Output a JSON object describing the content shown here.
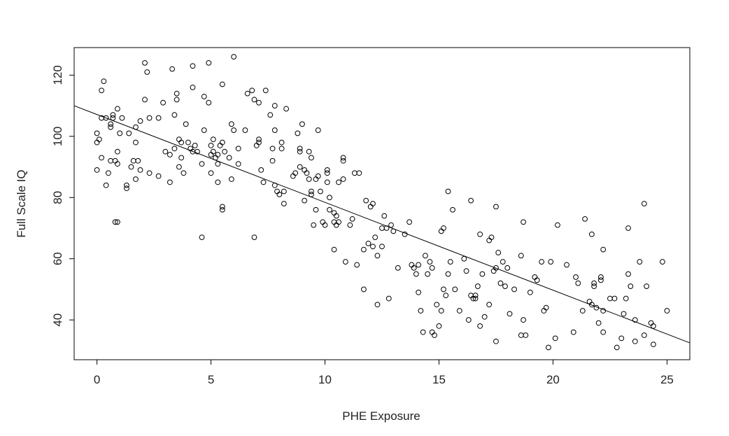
{
  "chart_data": {
    "type": "scatter",
    "title": "",
    "xlabel": "PHE Exposure",
    "ylabel": "Full Scale IQ",
    "xlim": [
      -1,
      26
    ],
    "ylim": [
      27,
      129
    ],
    "xticks": [
      0,
      5,
      10,
      15,
      20,
      25
    ],
    "yticks": [
      40,
      60,
      80,
      100,
      120
    ],
    "grid": false,
    "regression_line": {
      "x": [
        -1,
        26
      ],
      "y": [
        110,
        32.5
      ]
    },
    "points": [
      [
        0,
        101
      ],
      [
        0,
        98
      ],
      [
        0.1,
        99
      ],
      [
        0,
        89
      ],
      [
        0.2,
        93
      ],
      [
        0.2,
        106
      ],
      [
        0.2,
        115
      ],
      [
        0.3,
        118
      ],
      [
        0.4,
        84
      ],
      [
        0.4,
        106
      ],
      [
        0.5,
        88
      ],
      [
        0.6,
        92
      ],
      [
        0.6,
        104
      ],
      [
        0.6,
        103
      ],
      [
        0.7,
        106
      ],
      [
        0.7,
        107
      ],
      [
        0.8,
        72
      ],
      [
        0.8,
        92
      ],
      [
        0.9,
        72
      ],
      [
        0.9,
        91
      ],
      [
        0.9,
        95
      ],
      [
        0.9,
        109
      ],
      [
        1,
        101
      ],
      [
        1.1,
        106
      ],
      [
        1.3,
        83
      ],
      [
        1.3,
        84
      ],
      [
        1.4,
        101
      ],
      [
        1.5,
        90
      ],
      [
        1.6,
        92
      ],
      [
        1.7,
        98
      ],
      [
        1.7,
        103
      ],
      [
        1.7,
        86
      ],
      [
        1.8,
        92
      ],
      [
        1.9,
        89
      ],
      [
        1.9,
        105
      ],
      [
        2.1,
        124
      ],
      [
        2.1,
        112
      ],
      [
        2.2,
        121
      ],
      [
        2.3,
        106
      ],
      [
        2.3,
        88
      ],
      [
        2.7,
        106
      ],
      [
        2.7,
        87
      ],
      [
        2.9,
        111
      ],
      [
        3,
        95
      ],
      [
        3.2,
        94
      ],
      [
        3.2,
        85
      ],
      [
        3.3,
        122
      ],
      [
        3.4,
        107
      ],
      [
        3.4,
        96
      ],
      [
        3.5,
        112
      ],
      [
        3.5,
        114
      ],
      [
        3.6,
        99
      ],
      [
        3.6,
        90
      ],
      [
        3.7,
        93
      ],
      [
        3.7,
        98
      ],
      [
        3.8,
        88
      ],
      [
        3.9,
        104
      ],
      [
        4,
        98
      ],
      [
        4.1,
        96
      ],
      [
        4.2,
        95
      ],
      [
        4.2,
        123
      ],
      [
        4.2,
        116
      ],
      [
        4.3,
        97
      ],
      [
        4.4,
        95
      ],
      [
        4.6,
        67
      ],
      [
        4.6,
        91
      ],
      [
        4.7,
        102
      ],
      [
        4.7,
        113
      ],
      [
        4.9,
        124
      ],
      [
        4.9,
        111
      ],
      [
        5,
        97
      ],
      [
        5,
        94
      ],
      [
        5,
        88
      ],
      [
        5.1,
        95
      ],
      [
        5.1,
        99
      ],
      [
        5.2,
        93
      ],
      [
        5.3,
        91
      ],
      [
        5.3,
        85
      ],
      [
        5.3,
        94
      ],
      [
        5.4,
        97
      ],
      [
        5.5,
        76
      ],
      [
        5.5,
        77
      ],
      [
        5.5,
        98
      ],
      [
        5.5,
        117
      ],
      [
        5.6,
        95
      ],
      [
        5.8,
        93
      ],
      [
        5.9,
        104
      ],
      [
        5.9,
        86
      ],
      [
        6,
        102
      ],
      [
        6,
        126
      ],
      [
        6.2,
        96
      ],
      [
        6.2,
        91
      ],
      [
        6.5,
        102
      ],
      [
        6.6,
        114
      ],
      [
        6.8,
        115
      ],
      [
        6.9,
        67
      ],
      [
        6.9,
        112
      ],
      [
        7,
        97
      ],
      [
        7.1,
        98
      ],
      [
        7.1,
        99
      ],
      [
        7.1,
        111
      ],
      [
        7.2,
        89
      ],
      [
        7.3,
        85
      ],
      [
        7.4,
        115
      ],
      [
        7.6,
        107
      ],
      [
        7.7,
        96
      ],
      [
        7.7,
        92
      ],
      [
        7.8,
        84
      ],
      [
        7.8,
        110
      ],
      [
        7.8,
        102
      ],
      [
        7.9,
        82
      ],
      [
        8,
        81
      ],
      [
        8.1,
        98
      ],
      [
        8.1,
        96
      ],
      [
        8.2,
        78
      ],
      [
        8.2,
        82
      ],
      [
        8.3,
        109
      ],
      [
        8.6,
        87
      ],
      [
        8.7,
        88
      ],
      [
        8.8,
        101
      ],
      [
        8.9,
        96
      ],
      [
        8.9,
        95
      ],
      [
        8.9,
        90
      ],
      [
        9,
        104
      ],
      [
        9.1,
        79
      ],
      [
        9.1,
        89
      ],
      [
        9.2,
        88
      ],
      [
        9.3,
        95
      ],
      [
        9.3,
        86
      ],
      [
        9.4,
        93
      ],
      [
        9.4,
        82
      ],
      [
        9.4,
        81
      ],
      [
        9.5,
        71
      ],
      [
        9.6,
        86
      ],
      [
        9.6,
        76
      ],
      [
        9.7,
        102
      ],
      [
        9.7,
        87
      ],
      [
        9.8,
        82
      ],
      [
        9.9,
        72
      ],
      [
        10,
        71
      ],
      [
        10.1,
        89
      ],
      [
        10.1,
        88
      ],
      [
        10.1,
        85
      ],
      [
        10.2,
        80
      ],
      [
        10.2,
        76
      ],
      [
        10.4,
        75
      ],
      [
        10.4,
        72
      ],
      [
        10.4,
        63
      ],
      [
        10.5,
        74
      ],
      [
        10.5,
        71
      ],
      [
        10.6,
        85
      ],
      [
        10.6,
        72
      ],
      [
        10.8,
        93
      ],
      [
        10.8,
        92
      ],
      [
        10.8,
        86
      ],
      [
        10.9,
        59
      ],
      [
        11.1,
        71
      ],
      [
        11.2,
        73
      ],
      [
        11.3,
        88
      ],
      [
        11.4,
        58
      ],
      [
        11.5,
        88
      ],
      [
        11.7,
        50
      ],
      [
        11.7,
        63
      ],
      [
        11.8,
        79
      ],
      [
        11.9,
        65
      ],
      [
        12,
        77
      ],
      [
        12.1,
        64
      ],
      [
        12.1,
        78
      ],
      [
        12.2,
        67
      ],
      [
        12.3,
        45
      ],
      [
        12.3,
        61
      ],
      [
        12.5,
        70
      ],
      [
        12.5,
        64
      ],
      [
        12.6,
        74
      ],
      [
        12.7,
        70
      ],
      [
        12.8,
        47
      ],
      [
        12.9,
        71
      ],
      [
        13,
        69
      ],
      [
        13.2,
        57
      ],
      [
        13.5,
        68
      ],
      [
        13.7,
        72
      ],
      [
        13.8,
        58
      ],
      [
        13.9,
        57
      ],
      [
        14,
        55
      ],
      [
        14.1,
        58
      ],
      [
        14.1,
        49
      ],
      [
        14.2,
        43
      ],
      [
        14.3,
        36
      ],
      [
        14.4,
        61
      ],
      [
        14.5,
        55
      ],
      [
        14.6,
        59
      ],
      [
        14.7,
        57
      ],
      [
        14.7,
        36
      ],
      [
        14.8,
        35
      ],
      [
        14.9,
        45
      ],
      [
        15,
        38
      ],
      [
        15.1,
        43
      ],
      [
        15.1,
        69
      ],
      [
        15.2,
        70
      ],
      [
        15.2,
        50
      ],
      [
        15.3,
        48
      ],
      [
        15.4,
        82
      ],
      [
        15.4,
        55
      ],
      [
        15.5,
        59
      ],
      [
        15.6,
        76
      ],
      [
        15.7,
        50
      ],
      [
        15.9,
        43
      ],
      [
        16.1,
        60
      ],
      [
        16.2,
        56
      ],
      [
        16.3,
        40
      ],
      [
        16.4,
        79
      ],
      [
        16.4,
        48
      ],
      [
        16.5,
        47
      ],
      [
        16.6,
        47
      ],
      [
        16.6,
        48
      ],
      [
        16.7,
        51
      ],
      [
        16.8,
        38
      ],
      [
        16.8,
        68
      ],
      [
        16.9,
        55
      ],
      [
        17,
        41
      ],
      [
        17.2,
        66
      ],
      [
        17.2,
        45
      ],
      [
        17.3,
        67
      ],
      [
        17.4,
        56
      ],
      [
        17.5,
        33
      ],
      [
        17.5,
        77
      ],
      [
        17.5,
        57
      ],
      [
        17.6,
        62
      ],
      [
        17.7,
        52
      ],
      [
        17.8,
        59
      ],
      [
        17.9,
        51
      ],
      [
        18,
        57
      ],
      [
        18.1,
        42
      ],
      [
        18.3,
        50
      ],
      [
        18.6,
        61
      ],
      [
        18.6,
        35
      ],
      [
        18.7,
        72
      ],
      [
        18.7,
        40
      ],
      [
        18.8,
        35
      ],
      [
        19,
        49
      ],
      [
        19.2,
        54
      ],
      [
        19.3,
        53
      ],
      [
        19.5,
        59
      ],
      [
        19.6,
        43
      ],
      [
        19.7,
        44
      ],
      [
        19.8,
        31
      ],
      [
        19.9,
        59
      ],
      [
        20.1,
        34
      ],
      [
        20.2,
        71
      ],
      [
        20.6,
        58
      ],
      [
        20.9,
        36
      ],
      [
        21,
        54
      ],
      [
        21.1,
        52
      ],
      [
        21.3,
        43
      ],
      [
        21.4,
        73
      ],
      [
        21.6,
        46
      ],
      [
        21.7,
        45
      ],
      [
        21.7,
        68
      ],
      [
        21.8,
        52
      ],
      [
        21.8,
        51
      ],
      [
        21.9,
        44
      ],
      [
        22,
        39
      ],
      [
        22.1,
        53
      ],
      [
        22.1,
        54
      ],
      [
        22.2,
        36
      ],
      [
        22.2,
        43
      ],
      [
        22.2,
        63
      ],
      [
        22.5,
        47
      ],
      [
        22.7,
        47
      ],
      [
        22.8,
        31
      ],
      [
        23,
        34
      ],
      [
        23.1,
        42
      ],
      [
        23.2,
        47
      ],
      [
        23.3,
        70
      ],
      [
        23.3,
        55
      ],
      [
        23.4,
        51
      ],
      [
        23.6,
        40
      ],
      [
        23.6,
        33
      ],
      [
        23.8,
        59
      ],
      [
        24,
        35
      ],
      [
        24,
        78
      ],
      [
        24.1,
        51
      ],
      [
        24.3,
        39
      ],
      [
        24.4,
        38
      ],
      [
        24.4,
        32
      ],
      [
        24.8,
        59
      ],
      [
        25,
        43
      ]
    ]
  }
}
